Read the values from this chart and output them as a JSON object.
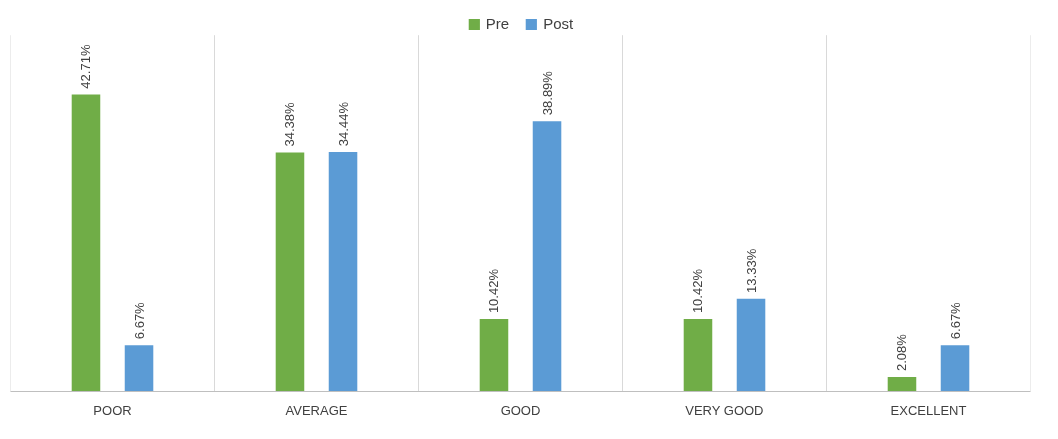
{
  "chart_data": {
    "type": "bar",
    "categories": [
      "POOR",
      "AVERAGE",
      "GOOD",
      "VERY GOOD",
      "EXCELLENT"
    ],
    "series": [
      {
        "name": "Pre",
        "color": "#70ad47",
        "values": [
          42.71,
          34.38,
          10.42,
          10.42,
          2.08
        ],
        "value_labels": [
          "42.71%",
          "34.38%",
          "10.42%",
          "10.42%",
          "2.08%"
        ]
      },
      {
        "name": "Post",
        "color": "#5b9bd5",
        "values": [
          6.67,
          34.44,
          38.89,
          13.33,
          6.67
        ],
        "value_labels": [
          "6.67%",
          "34.44%",
          "38.89%",
          "13.33%",
          "6.67%"
        ]
      }
    ],
    "grid": "x",
    "legend": "top"
  }
}
